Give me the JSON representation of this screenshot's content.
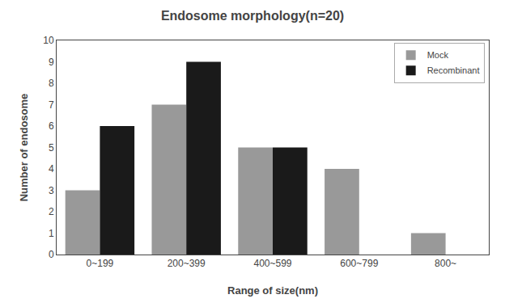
{
  "chart_data": {
    "type": "bar",
    "title": "Endosome morphology(n=20)",
    "xlabel": "Range of size(nm)",
    "ylabel": "Number of endosome",
    "categories": [
      "0~199",
      "200~399",
      "400~599",
      "600~799",
      "800~"
    ],
    "series": [
      {
        "name": "Mock",
        "color": "#999999",
        "values": [
          3,
          7,
          5,
          4,
          1
        ]
      },
      {
        "name": "Recombinant",
        "color": "#1a1a1a",
        "values": [
          6,
          9,
          5,
          0,
          0
        ]
      }
    ],
    "ylim": [
      0,
      10
    ],
    "yticks": [
      0,
      1,
      2,
      3,
      4,
      5,
      6,
      7,
      8,
      9,
      10
    ],
    "grid": false,
    "legend": "upper right"
  }
}
